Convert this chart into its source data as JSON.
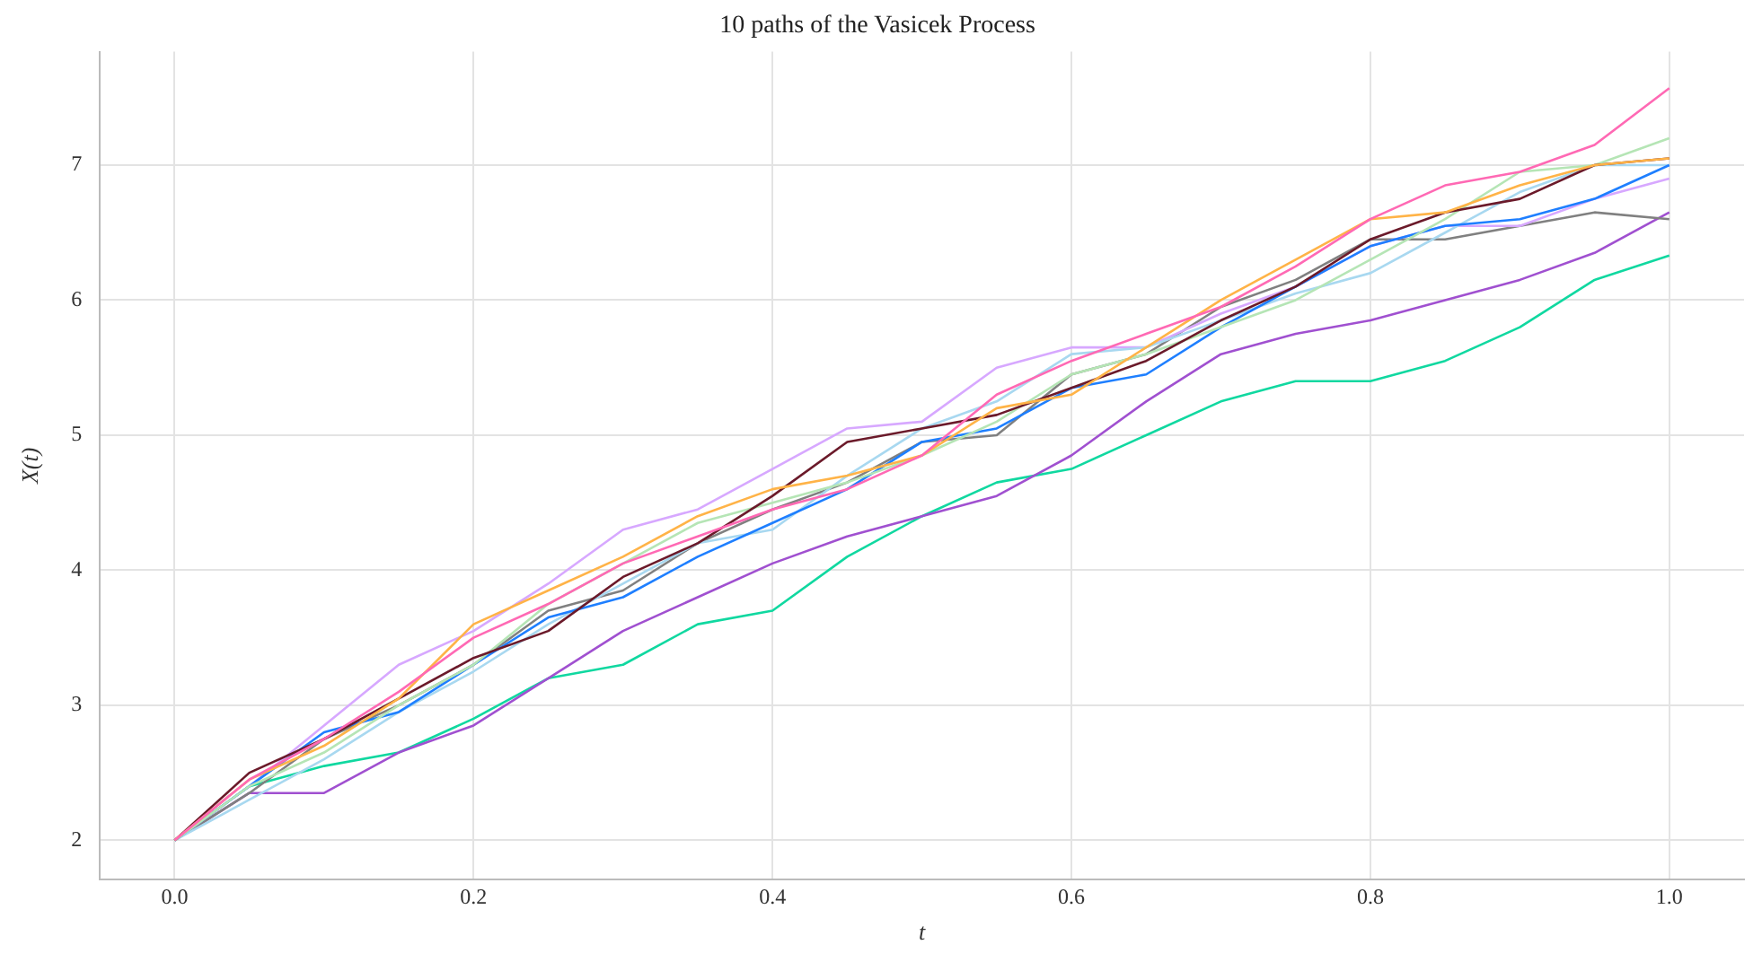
{
  "chart_data": {
    "type": "line",
    "title": "10 paths of the Vasicek Process",
    "xlabel": "t",
    "ylabel": "X(t)",
    "x": [
      0,
      0.05,
      0.1,
      0.15,
      0.2,
      0.25,
      0.3,
      0.35,
      0.4,
      0.45,
      0.5,
      0.55,
      0.6,
      0.65,
      0.7,
      0.75,
      0.8,
      0.85,
      0.9,
      0.95,
      1.0
    ],
    "series": [
      {
        "color": "#ff69b4",
        "values": [
          2,
          2.45,
          2.75,
          3.1,
          3.5,
          3.75,
          4.05,
          4.25,
          4.45,
          4.6,
          4.85,
          5.3,
          5.55,
          5.75,
          5.95,
          6.25,
          6.6,
          6.85,
          6.95,
          7.15,
          7.57
        ]
      },
      {
        "color": "#ffb347",
        "values": [
          2,
          2.45,
          2.7,
          3.05,
          3.6,
          3.85,
          4.1,
          4.4,
          4.6,
          4.7,
          4.85,
          5.2,
          5.3,
          5.65,
          6.0,
          6.3,
          6.6,
          6.65,
          6.85,
          7.0,
          7.05
        ]
      },
      {
        "color": "#6b1a2a",
        "values": [
          2,
          2.5,
          2.75,
          3.05,
          3.35,
          3.55,
          3.95,
          4.2,
          4.55,
          4.95,
          5.05,
          5.15,
          5.35,
          5.55,
          5.85,
          6.1,
          6.45,
          6.65,
          6.75,
          7.0,
          7.05
        ]
      },
      {
        "color": "#b5e5b5",
        "values": [
          2,
          2.4,
          2.65,
          3.0,
          3.3,
          3.75,
          4.05,
          4.35,
          4.5,
          4.65,
          4.85,
          5.1,
          5.45,
          5.6,
          5.8,
          6.0,
          6.3,
          6.6,
          6.95,
          7.0,
          7.2
        ]
      },
      {
        "color": "#1e7fff",
        "values": [
          2,
          2.4,
          2.8,
          2.95,
          3.3,
          3.65,
          3.8,
          4.1,
          4.35,
          4.6,
          4.95,
          5.05,
          5.35,
          5.45,
          5.8,
          6.1,
          6.4,
          6.55,
          6.6,
          6.75,
          7.0
        ]
      },
      {
        "color": "#a8d8f0",
        "values": [
          2,
          2.3,
          2.6,
          2.95,
          3.25,
          3.6,
          3.9,
          4.2,
          4.3,
          4.7,
          5.05,
          5.25,
          5.6,
          5.65,
          5.85,
          6.05,
          6.2,
          6.5,
          6.8,
          7.0,
          7.0
        ]
      },
      {
        "color": "#d7a8ff",
        "values": [
          2,
          2.4,
          2.85,
          3.3,
          3.55,
          3.9,
          4.3,
          4.45,
          4.75,
          5.05,
          5.1,
          5.5,
          5.65,
          5.65,
          5.9,
          6.1,
          6.4,
          6.55,
          6.55,
          6.75,
          6.9
        ]
      },
      {
        "color": "#808080",
        "values": [
          2,
          2.35,
          2.75,
          3.0,
          3.3,
          3.7,
          3.85,
          4.2,
          4.45,
          4.65,
          4.95,
          5.0,
          5.45,
          5.6,
          5.95,
          6.15,
          6.45,
          6.45,
          6.55,
          6.65,
          6.6
        ]
      },
      {
        "color": "#a050d0",
        "values": [
          2,
          2.35,
          2.35,
          2.65,
          2.85,
          3.2,
          3.55,
          3.8,
          4.05,
          4.25,
          4.4,
          4.55,
          4.85,
          5.25,
          5.6,
          5.75,
          5.85,
          6.0,
          6.15,
          6.35,
          6.65
        ]
      },
      {
        "color": "#10d8a0",
        "values": [
          2,
          2.4,
          2.55,
          2.65,
          2.9,
          3.2,
          3.3,
          3.6,
          3.7,
          4.1,
          4.4,
          4.65,
          4.75,
          5.0,
          5.25,
          5.4,
          5.4,
          5.55,
          5.8,
          6.15,
          6.33
        ]
      }
    ],
    "xlim": [
      -0.05,
      1.05
    ],
    "ylim": [
      1.71,
      7.84
    ],
    "xticks": [
      {
        "value": 0,
        "label": "0.0"
      },
      {
        "value": 0.2,
        "label": "0.2"
      },
      {
        "value": 0.4,
        "label": "0.4"
      },
      {
        "value": 0.6,
        "label": "0.6"
      },
      {
        "value": 0.8,
        "label": "0.8"
      },
      {
        "value": 1.0,
        "label": "1.0"
      }
    ],
    "yticks": [
      2,
      3,
      4,
      5,
      6,
      7
    ],
    "grid": true,
    "legend": false,
    "marker": "none",
    "line_style": "solid"
  }
}
